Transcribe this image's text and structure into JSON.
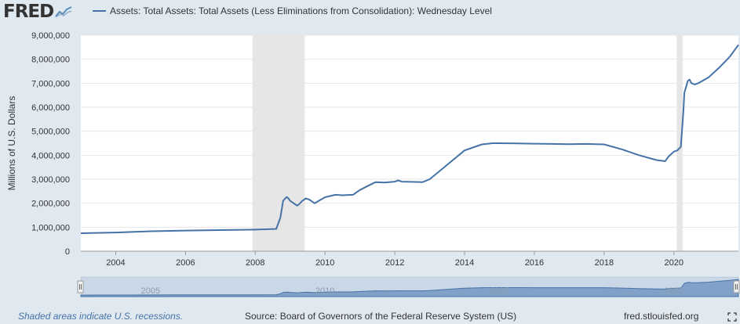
{
  "logo": {
    "text": "FRED",
    "icon": "trend-line-icon"
  },
  "legend": {
    "label": "Assets: Total Assets: Total Assets (Less Eliminations from Consolidation): Wednesday Level",
    "color": "#4572a7"
  },
  "footer": {
    "note": "Shaded areas indicate U.S. recessions.",
    "source": "Source: Board of Governors of the Federal Reserve System (US)",
    "site": "fred.stlouisfed.org"
  },
  "chart_data": {
    "type": "line",
    "title": "",
    "xlabel": "",
    "ylabel": "Millions of U.S. Dollars",
    "xlim": [
      2003.0,
      2021.85
    ],
    "ylim": [
      0,
      9000000
    ],
    "yticks": [
      0,
      1000000,
      2000000,
      3000000,
      4000000,
      5000000,
      6000000,
      7000000,
      8000000,
      9000000
    ],
    "ytick_labels": [
      "0",
      "1,000,000",
      "2,000,000",
      "3,000,000",
      "4,000,000",
      "5,000,000",
      "6,000,000",
      "7,000,000",
      "8,000,000",
      "9,000,000"
    ],
    "xticks": [
      2004,
      2006,
      2008,
      2010,
      2012,
      2014,
      2016,
      2018,
      2020
    ],
    "xtick_labels": [
      "2004",
      "2006",
      "2008",
      "2010",
      "2012",
      "2014",
      "2016",
      "2018",
      "2020"
    ],
    "grid": "horizontal",
    "line_color": "#4572a7",
    "recession_color": "#e6e6e6",
    "recessions": [
      [
        2007.92,
        2009.42
      ],
      [
        2020.08,
        2020.25
      ]
    ],
    "series": [
      {
        "x": [
          2003.0,
          2004.0,
          2005.0,
          2006.0,
          2007.0,
          2008.0,
          2008.6,
          2008.72,
          2008.8,
          2008.9,
          2008.95,
          2009.0,
          2009.1,
          2009.2,
          2009.25,
          2009.35,
          2009.45,
          2009.55,
          2009.7,
          2010.0,
          2010.3,
          2010.5,
          2010.8,
          2011.0,
          2011.2,
          2011.45,
          2011.7,
          2012.0,
          2012.1,
          2012.2,
          2012.5,
          2012.8,
          2013.0,
          2013.5,
          2014.0,
          2014.5,
          2014.8,
          2015.0,
          2015.5,
          2016.0,
          2016.5,
          2017.0,
          2017.5,
          2018.0,
          2018.5,
          2019.0,
          2019.5,
          2019.75,
          2019.85,
          2020.0,
          2020.1,
          2020.2,
          2020.27,
          2020.3,
          2020.4,
          2020.45,
          2020.5,
          2020.6,
          2020.7,
          2021.0,
          2021.3,
          2021.6,
          2021.85
        ],
        "values": [
          750000,
          780000,
          830000,
          860000,
          880000,
          900000,
          930000,
          1400000,
          2100000,
          2260000,
          2200000,
          2100000,
          2000000,
          1900000,
          1950000,
          2100000,
          2200000,
          2150000,
          2000000,
          2250000,
          2350000,
          2330000,
          2350000,
          2550000,
          2700000,
          2880000,
          2860000,
          2900000,
          2950000,
          2900000,
          2890000,
          2880000,
          3000000,
          3600000,
          4200000,
          4450000,
          4500000,
          4500000,
          4490000,
          4480000,
          4470000,
          4460000,
          4470000,
          4450000,
          4250000,
          4000000,
          3800000,
          3750000,
          3950000,
          4150000,
          4200000,
          4350000,
          5800000,
          6600000,
          7100000,
          7150000,
          7000000,
          6950000,
          7000000,
          7250000,
          7650000,
          8100000,
          8600000
        ]
      }
    ],
    "navigator": {
      "tick_labels": [
        "2005",
        "2010",
        "2015",
        "2020"
      ]
    }
  }
}
